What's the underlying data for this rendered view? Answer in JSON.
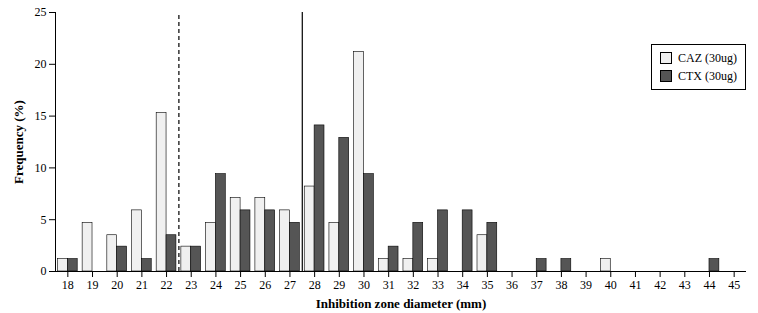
{
  "chart_data": {
    "type": "bar",
    "x_label": "Inhibition zone diameter (mm)",
    "y_label": "Frequency (%)",
    "x": [
      18,
      19,
      20,
      21,
      22,
      23,
      24,
      25,
      26,
      27,
      28,
      29,
      30,
      31,
      32,
      33,
      34,
      35,
      36,
      37,
      38,
      39,
      40,
      41,
      42,
      43,
      44,
      45
    ],
    "series": [
      {
        "name": "CAZ (30ug)",
        "color": "#f0f0f0",
        "values": [
          1.2,
          4.7,
          3.5,
          5.9,
          15.3,
          2.4,
          4.7,
          7.1,
          7.1,
          5.9,
          8.2,
          4.7,
          21.2,
          1.2,
          1.2,
          1.2,
          0,
          3.5,
          0,
          0,
          0,
          0,
          1.2,
          0,
          0,
          0,
          0,
          0
        ]
      },
      {
        "name": "CTX (30ug)",
        "color": "#555555",
        "values": [
          1.2,
          0,
          2.4,
          1.2,
          3.5,
          2.4,
          9.4,
          5.9,
          5.9,
          4.7,
          14.1,
          12.9,
          9.4,
          2.4,
          4.7,
          5.9,
          5.9,
          4.7,
          0,
          1.2,
          1.2,
          0,
          0,
          0,
          0,
          0,
          1.2,
          0
        ]
      }
    ],
    "reference_lines": [
      {
        "x": 22.5,
        "line_style": "dashed"
      },
      {
        "x": 27.5,
        "line_style": "solid"
      }
    ],
    "xlim": [
      17.5,
      45.5
    ],
    "xticks": [
      18,
      19,
      20,
      21,
      22,
      23,
      24,
      25,
      26,
      27,
      28,
      29,
      30,
      31,
      32,
      33,
      34,
      35,
      36,
      37,
      38,
      39,
      40,
      41,
      42,
      43,
      44,
      45
    ],
    "ylim": [
      0,
      25
    ],
    "yticks": [
      0,
      5,
      10,
      15,
      20,
      25
    ],
    "grid": false,
    "legend": "top-right"
  }
}
